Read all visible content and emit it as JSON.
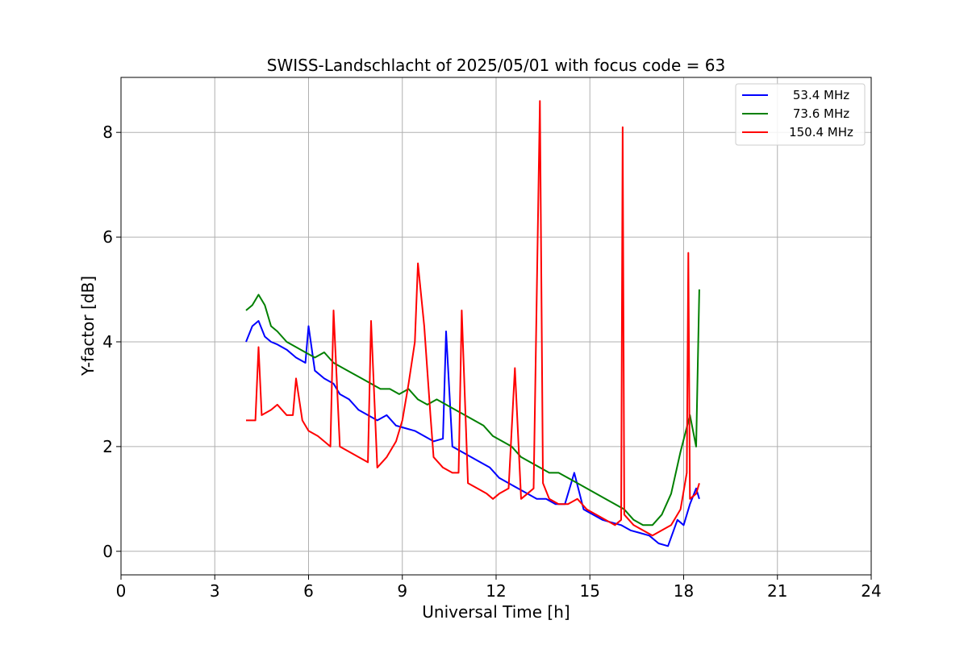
{
  "chart_data": {
    "type": "line",
    "title": "SWISS-Landschlacht of 2025/05/01 with focus code = 63",
    "xlabel": "Universal Time [h]",
    "ylabel": "Y-factor [dB]",
    "xlim": [
      0,
      24
    ],
    "ylim": [
      -0.45,
      9.05
    ],
    "xticks": [
      0,
      3,
      6,
      9,
      12,
      15,
      18,
      21,
      24
    ],
    "yticks": [
      0,
      2,
      4,
      6,
      8
    ],
    "grid": true,
    "legend_position": "top-right",
    "series": [
      {
        "name": "53.4 MHz",
        "color": "#0000ff",
        "x": [
          4.0,
          4.2,
          4.4,
          4.6,
          4.8,
          5.0,
          5.3,
          5.6,
          5.9,
          6.0,
          6.2,
          6.5,
          6.8,
          7.0,
          7.3,
          7.6,
          7.9,
          8.2,
          8.5,
          8.8,
          9.1,
          9.4,
          9.7,
          10.0,
          10.3,
          10.4,
          10.6,
          10.9,
          11.2,
          11.5,
          11.8,
          12.1,
          12.4,
          12.7,
          13.0,
          13.3,
          13.6,
          13.9,
          14.2,
          14.5,
          14.8,
          15.1,
          15.4,
          15.7,
          16.0,
          16.3,
          16.6,
          16.9,
          17.2,
          17.5,
          17.8,
          18.0,
          18.2,
          18.4,
          18.5
        ],
        "y": [
          4.0,
          4.3,
          4.4,
          4.1,
          4.0,
          3.95,
          3.85,
          3.7,
          3.6,
          4.3,
          3.45,
          3.3,
          3.2,
          3.0,
          2.9,
          2.7,
          2.6,
          2.5,
          2.6,
          2.4,
          2.35,
          2.3,
          2.2,
          2.1,
          2.15,
          4.2,
          2.0,
          1.9,
          1.8,
          1.7,
          1.6,
          1.4,
          1.3,
          1.2,
          1.1,
          1.0,
          1.0,
          0.9,
          0.9,
          1.5,
          0.8,
          0.7,
          0.6,
          0.55,
          0.5,
          0.4,
          0.35,
          0.3,
          0.15,
          0.1,
          0.6,
          0.5,
          0.9,
          1.2,
          1.0
        ]
      },
      {
        "name": "73.6 MHz",
        "color": "#008000",
        "x": [
          4.0,
          4.2,
          4.4,
          4.6,
          4.8,
          5.0,
          5.3,
          5.6,
          5.9,
          6.2,
          6.5,
          6.8,
          7.1,
          7.4,
          7.7,
          8.0,
          8.3,
          8.6,
          8.9,
          9.2,
          9.5,
          9.8,
          10.1,
          10.4,
          10.7,
          11.0,
          11.3,
          11.6,
          11.9,
          12.2,
          12.5,
          12.8,
          13.1,
          13.4,
          13.7,
          14.0,
          14.3,
          14.6,
          14.9,
          15.2,
          15.5,
          15.8,
          16.1,
          16.4,
          16.7,
          17.0,
          17.3,
          17.6,
          17.9,
          18.2,
          18.4,
          18.5
        ],
        "y": [
          4.6,
          4.7,
          4.9,
          4.7,
          4.3,
          4.2,
          4.0,
          3.9,
          3.8,
          3.7,
          3.8,
          3.6,
          3.5,
          3.4,
          3.3,
          3.2,
          3.1,
          3.1,
          3.0,
          3.1,
          2.9,
          2.8,
          2.9,
          2.8,
          2.7,
          2.6,
          2.5,
          2.4,
          2.2,
          2.1,
          2.0,
          1.8,
          1.7,
          1.6,
          1.5,
          1.5,
          1.4,
          1.3,
          1.2,
          1.1,
          1.0,
          0.9,
          0.8,
          0.6,
          0.5,
          0.5,
          0.7,
          1.1,
          1.9,
          2.6,
          2.0,
          5.0
        ]
      },
      {
        "name": "150.4 MHz",
        "color": "#ff0000",
        "x": [
          4.0,
          4.2,
          4.3,
          4.4,
          4.5,
          4.8,
          5.0,
          5.3,
          5.5,
          5.6,
          5.8,
          6.0,
          6.3,
          6.5,
          6.7,
          6.8,
          7.0,
          7.3,
          7.6,
          7.9,
          8.0,
          8.2,
          8.5,
          8.8,
          9.0,
          9.2,
          9.4,
          9.5,
          9.7,
          9.9,
          10.0,
          10.3,
          10.6,
          10.8,
          10.9,
          11.1,
          11.4,
          11.7,
          11.9,
          12.1,
          12.4,
          12.6,
          12.8,
          13.0,
          13.2,
          13.4,
          13.5,
          13.7,
          14.0,
          14.3,
          14.6,
          14.9,
          15.2,
          15.5,
          15.8,
          16.0,
          16.05,
          16.1,
          16.4,
          16.7,
          17.0,
          17.3,
          17.6,
          17.9,
          18.1,
          18.15,
          18.2,
          18.4,
          18.5
        ],
        "y": [
          2.5,
          2.5,
          2.5,
          3.9,
          2.6,
          2.7,
          2.8,
          2.6,
          2.6,
          3.3,
          2.5,
          2.3,
          2.2,
          2.1,
          2.0,
          4.6,
          2.0,
          1.9,
          1.8,
          1.7,
          4.4,
          1.6,
          1.8,
          2.1,
          2.5,
          3.2,
          4.0,
          5.5,
          4.3,
          2.6,
          1.8,
          1.6,
          1.5,
          1.5,
          4.6,
          1.3,
          1.2,
          1.1,
          1.0,
          1.1,
          1.2,
          3.5,
          1.0,
          1.1,
          1.2,
          8.6,
          1.3,
          1.0,
          0.9,
          0.9,
          1.0,
          0.8,
          0.7,
          0.6,
          0.5,
          0.6,
          8.1,
          0.7,
          0.5,
          0.4,
          0.3,
          0.4,
          0.5,
          0.8,
          1.5,
          5.7,
          1.0,
          1.1,
          1.3
        ]
      }
    ]
  }
}
